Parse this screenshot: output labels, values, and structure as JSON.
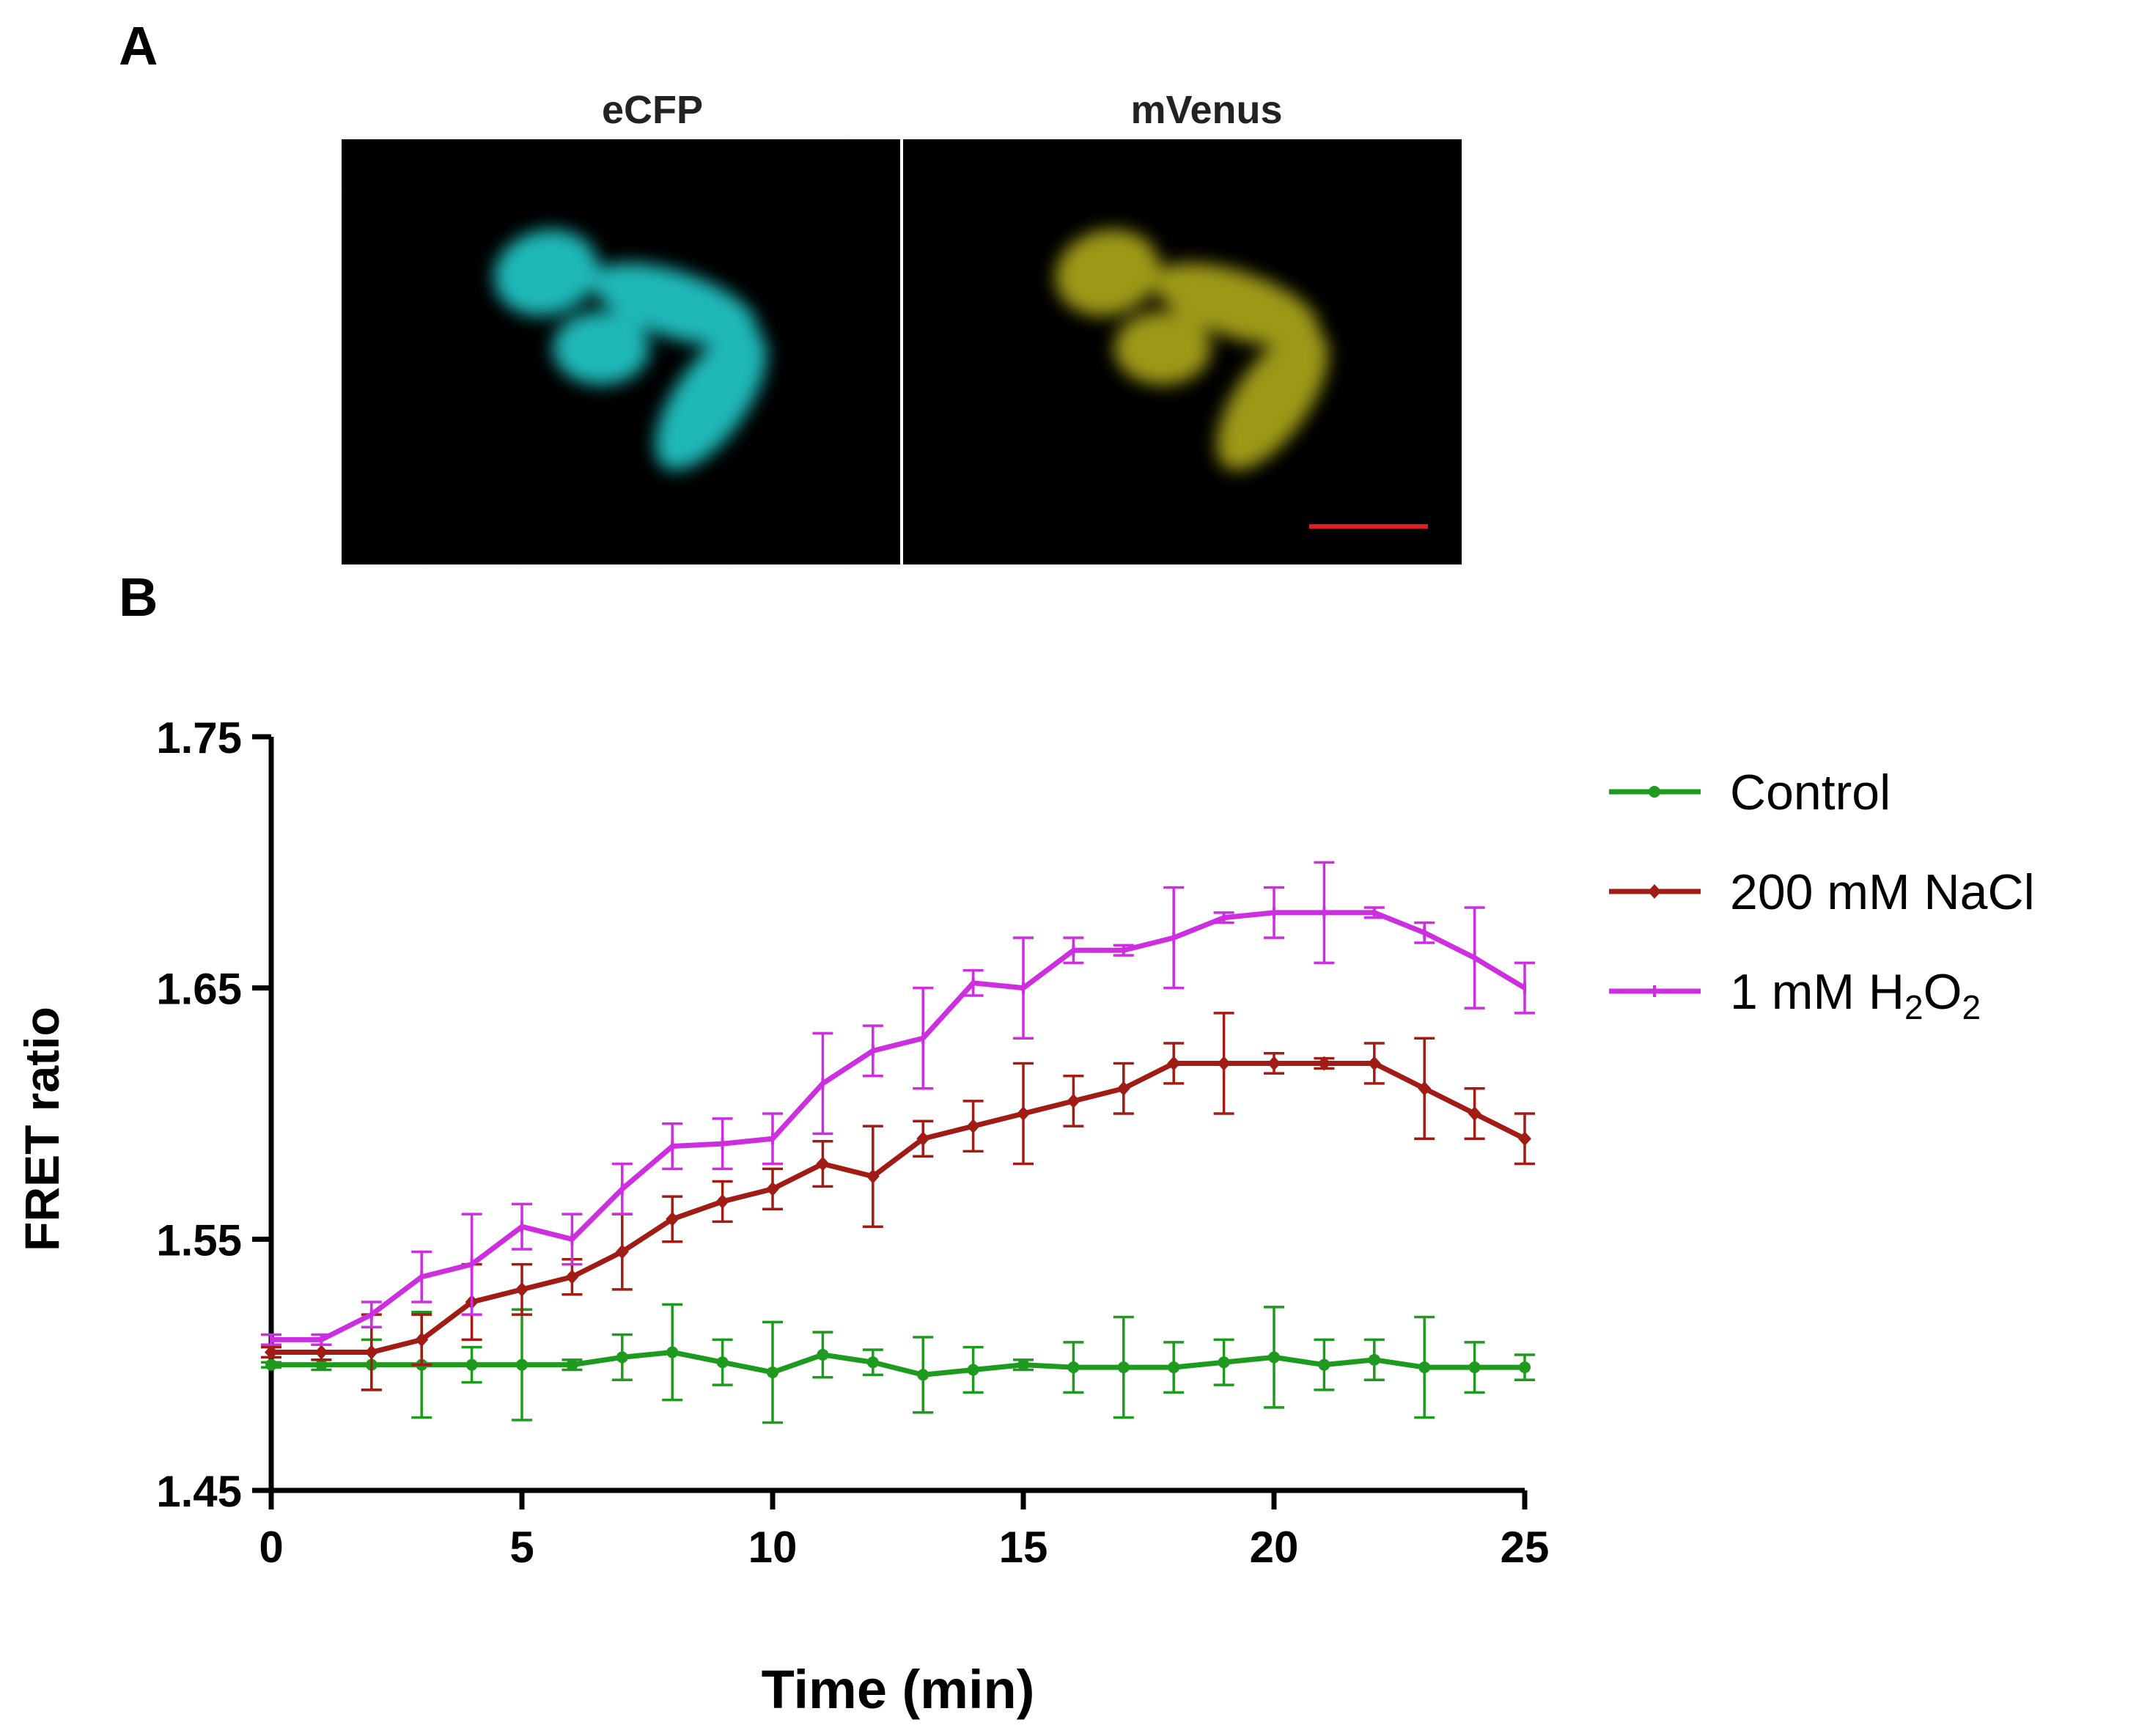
{
  "panel_a": {
    "label": "A",
    "images": [
      {
        "title": "eCFP",
        "channel_color": "#22c8c8"
      },
      {
        "title": "mVenus",
        "channel_color": "#b8b41a"
      }
    ],
    "scale_bar_color": "#e02020"
  },
  "panel_b": {
    "label": "B"
  },
  "chart_data": {
    "type": "line",
    "title": "",
    "xlabel": "Time (min)",
    "ylabel": "FRET ratio",
    "xlim": [
      0,
      25
    ],
    "ylim": [
      1.45,
      1.75
    ],
    "xticks": [
      0,
      5,
      10,
      15,
      20,
      25
    ],
    "xtick_labels": [
      "0",
      "5",
      "10",
      "15",
      "20",
      "25"
    ],
    "yticks": [
      1.45,
      1.55,
      1.65,
      1.75
    ],
    "ytick_labels": [
      "1.45",
      "1.55",
      "1.65",
      "1.75"
    ],
    "grid": false,
    "legend_position": "right",
    "x": [
      0,
      1,
      2,
      3,
      4,
      5,
      6,
      7,
      8,
      9,
      10,
      11,
      12,
      13,
      14,
      15,
      16,
      17,
      18,
      19,
      20,
      21,
      22,
      23,
      24,
      25
    ],
    "series": [
      {
        "name": "Control",
        "legend_parts": [
          "Control"
        ],
        "color": "#1e9a1e",
        "marker": "circle",
        "values": [
          1.5,
          1.5,
          1.5,
          1.5,
          1.5,
          1.5,
          1.5,
          1.503,
          1.505,
          1.501,
          1.497,
          1.504,
          1.501,
          1.496,
          1.498,
          1.5,
          1.499,
          1.499,
          1.499,
          1.501,
          1.503,
          1.5,
          1.502,
          1.499,
          1.499,
          1.499
        ],
        "errors": [
          0.001,
          0.002,
          0.01,
          0.021,
          0.007,
          0.022,
          0.002,
          0.009,
          0.019,
          0.009,
          0.02,
          0.009,
          0.005,
          0.015,
          0.009,
          0.002,
          0.01,
          0.02,
          0.01,
          0.009,
          0.02,
          0.01,
          0.008,
          0.02,
          0.01,
          0.005
        ]
      },
      {
        "name": "200 mM NaCl",
        "legend_parts": [
          "200 mM NaCl"
        ],
        "color": "#a01c14",
        "marker": "diamond",
        "values": [
          1.505,
          1.505,
          1.505,
          1.51,
          1.525,
          1.53,
          1.535,
          1.545,
          1.558,
          1.565,
          1.57,
          1.58,
          1.575,
          1.59,
          1.595,
          1.6,
          1.605,
          1.61,
          1.62,
          1.62,
          1.62,
          1.62,
          1.62,
          1.61,
          1.6,
          1.59
        ],
        "errors": [
          0.002,
          0.003,
          0.015,
          0.01,
          0.015,
          0.01,
          0.007,
          0.015,
          0.009,
          0.008,
          0.008,
          0.009,
          0.02,
          0.007,
          0.01,
          0.02,
          0.01,
          0.01,
          0.008,
          0.02,
          0.004,
          0.002,
          0.008,
          0.02,
          0.01,
          0.01
        ]
      },
      {
        "name": "1 mM H2O2",
        "legend_parts": [
          "1 mM H",
          "2",
          "O",
          "2"
        ],
        "color": "#cc2ee0",
        "marker": "tick",
        "values": [
          1.51,
          1.51,
          1.52,
          1.535,
          1.54,
          1.555,
          1.55,
          1.57,
          1.587,
          1.588,
          1.59,
          1.612,
          1.625,
          1.63,
          1.652,
          1.65,
          1.665,
          1.665,
          1.67,
          1.678,
          1.68,
          1.68,
          1.68,
          1.672,
          1.662,
          1.65
        ],
        "errors": [
          0.002,
          0.002,
          0.005,
          0.01,
          0.02,
          0.009,
          0.01,
          0.01,
          0.009,
          0.01,
          0.01,
          0.02,
          0.01,
          0.02,
          0.005,
          0.02,
          0.005,
          0.002,
          0.02,
          0.002,
          0.01,
          0.02,
          0.002,
          0.004,
          0.02,
          0.01
        ]
      }
    ]
  }
}
